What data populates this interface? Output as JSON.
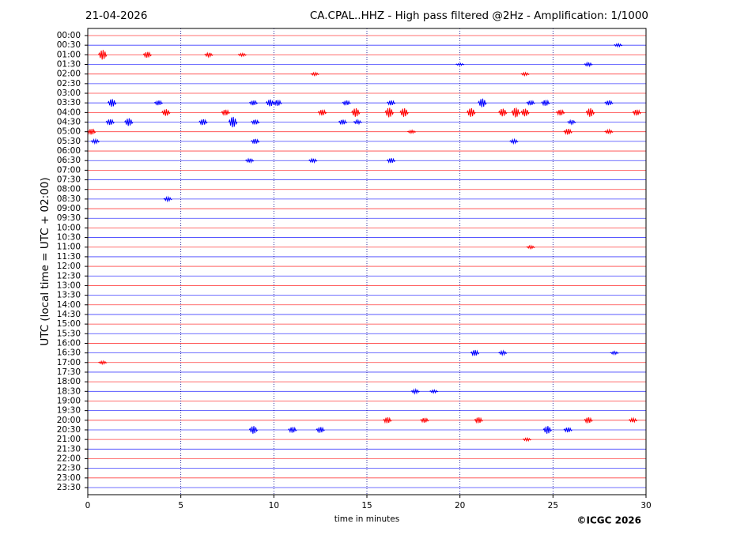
{
  "chart_data": {
    "type": "helicorder",
    "date": "21-04-2026",
    "title": "CA.CPAL..HHZ - High pass filtered @2Hz - Amplification: 1/1000",
    "ylabel": "UTC (local time = UTC + 02:00)",
    "xlabel": "time in minutes",
    "credit": "©ICGC 2026",
    "xlim": [
      0,
      30
    ],
    "xticks": [
      0,
      5,
      10,
      15,
      20,
      25,
      30
    ],
    "grid": true,
    "colors": [
      "#ff0000",
      "#0000ff"
    ],
    "categories": [
      "00:00",
      "00:30",
      "01:00",
      "01:30",
      "02:00",
      "02:30",
      "03:00",
      "03:30",
      "04:00",
      "04:30",
      "05:00",
      "05:30",
      "06:00",
      "06:30",
      "07:00",
      "07:30",
      "08:00",
      "08:30",
      "09:00",
      "09:30",
      "10:00",
      "10:30",
      "11:00",
      "11:30",
      "12:00",
      "12:30",
      "13:00",
      "13:30",
      "14:00",
      "14:30",
      "15:00",
      "15:30",
      "16:00",
      "16:30",
      "17:00",
      "17:30",
      "18:00",
      "18:30",
      "19:00",
      "19:30",
      "20:00",
      "20:30",
      "21:00",
      "21:30",
      "22:00",
      "22:30",
      "23:00",
      "23:30"
    ],
    "events": [
      {
        "row": 1,
        "x": 28.5,
        "amp": 0.15
      },
      {
        "row": 2,
        "x": 0.8,
        "amp": 0.5
      },
      {
        "row": 2,
        "x": 3.2,
        "amp": 0.3
      },
      {
        "row": 2,
        "x": 6.5,
        "amp": 0.2
      },
      {
        "row": 2,
        "x": 8.3,
        "amp": 0.15
      },
      {
        "row": 3,
        "x": 20,
        "amp": 0.1
      },
      {
        "row": 3,
        "x": 26.9,
        "amp": 0.2
      },
      {
        "row": 4,
        "x": 12.2,
        "amp": 0.15
      },
      {
        "row": 4,
        "x": 23.5,
        "amp": 0.15
      },
      {
        "row": 7,
        "x": 1.3,
        "amp": 0.4
      },
      {
        "row": 7,
        "x": 3.8,
        "amp": 0.25
      },
      {
        "row": 7,
        "x": 8.9,
        "amp": 0.25
      },
      {
        "row": 7,
        "x": 9.8,
        "amp": 0.35
      },
      {
        "row": 7,
        "x": 10.2,
        "amp": 0.3
      },
      {
        "row": 7,
        "x": 13.9,
        "amp": 0.25
      },
      {
        "row": 7,
        "x": 16.3,
        "amp": 0.25
      },
      {
        "row": 7,
        "x": 21.2,
        "amp": 0.45
      },
      {
        "row": 7,
        "x": 23.8,
        "amp": 0.25
      },
      {
        "row": 7,
        "x": 24.6,
        "amp": 0.3
      },
      {
        "row": 7,
        "x": 28,
        "amp": 0.25
      },
      {
        "row": 8,
        "x": 4.2,
        "amp": 0.35
      },
      {
        "row": 8,
        "x": 7.4,
        "amp": 0.3
      },
      {
        "row": 8,
        "x": 12.6,
        "amp": 0.3
      },
      {
        "row": 8,
        "x": 14.4,
        "amp": 0.45
      },
      {
        "row": 8,
        "x": 16.2,
        "amp": 0.5
      },
      {
        "row": 8,
        "x": 17,
        "amp": 0.45
      },
      {
        "row": 8,
        "x": 20.6,
        "amp": 0.45
      },
      {
        "row": 8,
        "x": 22.3,
        "amp": 0.4
      },
      {
        "row": 8,
        "x": 23,
        "amp": 0.5
      },
      {
        "row": 8,
        "x": 23.5,
        "amp": 0.4
      },
      {
        "row": 8,
        "x": 25.4,
        "amp": 0.3
      },
      {
        "row": 8,
        "x": 27,
        "amp": 0.45
      },
      {
        "row": 8,
        "x": 29.5,
        "amp": 0.3
      },
      {
        "row": 9,
        "x": 1.2,
        "amp": 0.3
      },
      {
        "row": 9,
        "x": 2.2,
        "amp": 0.4
      },
      {
        "row": 9,
        "x": 6.2,
        "amp": 0.3
      },
      {
        "row": 9,
        "x": 7.8,
        "amp": 0.55
      },
      {
        "row": 9,
        "x": 9,
        "amp": 0.25
      },
      {
        "row": 9,
        "x": 13.7,
        "amp": 0.25
      },
      {
        "row": 9,
        "x": 14.5,
        "amp": 0.2
      },
      {
        "row": 9,
        "x": 26,
        "amp": 0.2
      },
      {
        "row": 10,
        "x": 0.2,
        "amp": 0.3
      },
      {
        "row": 10,
        "x": 17.4,
        "amp": 0.15
      },
      {
        "row": 10,
        "x": 25.8,
        "amp": 0.3
      },
      {
        "row": 10,
        "x": 28,
        "amp": 0.2
      },
      {
        "row": 11,
        "x": 0.4,
        "amp": 0.2
      },
      {
        "row": 11,
        "x": 9,
        "amp": 0.25
      },
      {
        "row": 11,
        "x": 22.9,
        "amp": 0.2
      },
      {
        "row": 13,
        "x": 8.7,
        "amp": 0.2
      },
      {
        "row": 13,
        "x": 12.1,
        "amp": 0.2
      },
      {
        "row": 13,
        "x": 16.3,
        "amp": 0.25
      },
      {
        "row": 17,
        "x": 4.3,
        "amp": 0.2
      },
      {
        "row": 22,
        "x": 23.8,
        "amp": 0.15
      },
      {
        "row": 33,
        "x": 20.8,
        "amp": 0.3
      },
      {
        "row": 33,
        "x": 22.3,
        "amp": 0.2
      },
      {
        "row": 33,
        "x": 28.3,
        "amp": 0.15
      },
      {
        "row": 34,
        "x": 0.8,
        "amp": 0.15
      },
      {
        "row": 37,
        "x": 17.6,
        "amp": 0.2
      },
      {
        "row": 37,
        "x": 18.6,
        "amp": 0.15
      },
      {
        "row": 40,
        "x": 16.1,
        "amp": 0.3
      },
      {
        "row": 40,
        "x": 18.1,
        "amp": 0.25
      },
      {
        "row": 40,
        "x": 21,
        "amp": 0.3
      },
      {
        "row": 40,
        "x": 26.9,
        "amp": 0.3
      },
      {
        "row": 40,
        "x": 29.3,
        "amp": 0.2
      },
      {
        "row": 41,
        "x": 8.9,
        "amp": 0.4
      },
      {
        "row": 41,
        "x": 11,
        "amp": 0.3
      },
      {
        "row": 41,
        "x": 12.5,
        "amp": 0.3
      },
      {
        "row": 41,
        "x": 24.7,
        "amp": 0.4
      },
      {
        "row": 41,
        "x": 25.8,
        "amp": 0.25
      },
      {
        "row": 42,
        "x": 23.6,
        "amp": 0.15
      }
    ]
  }
}
